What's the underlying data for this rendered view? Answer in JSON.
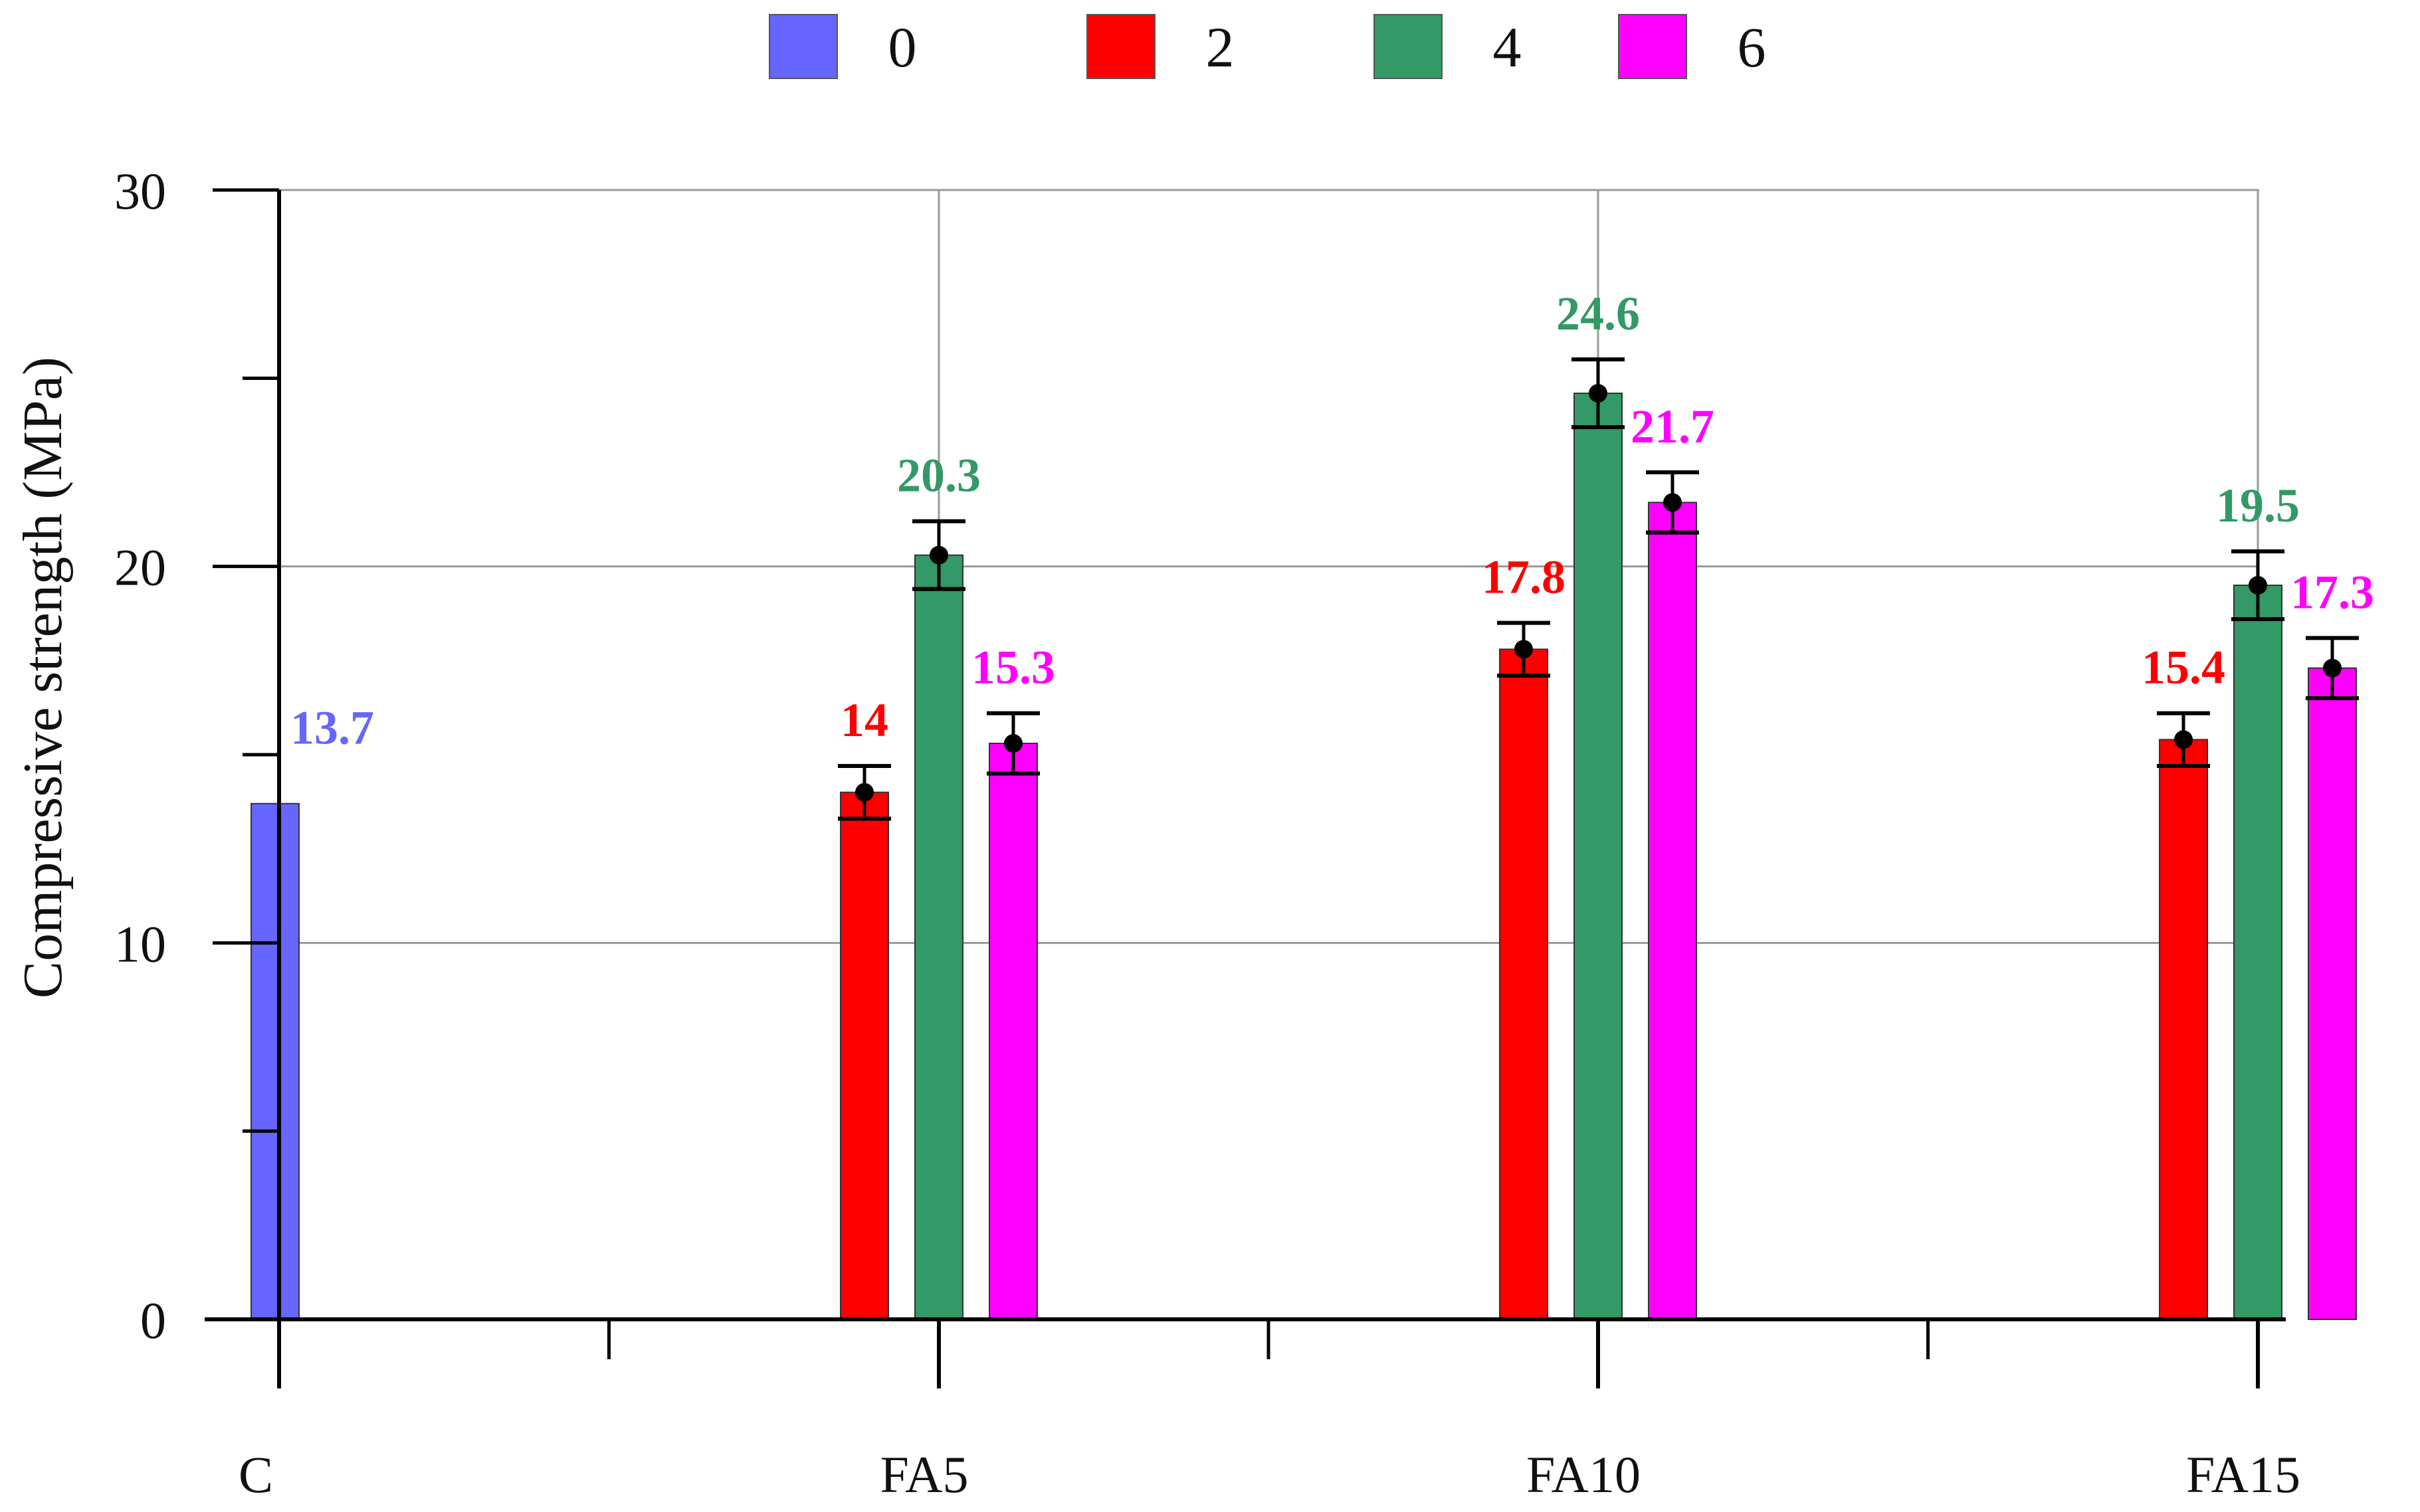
{
  "chart_data": {
    "type": "bar",
    "title": "",
    "xlabel": "",
    "ylabel": "Compressive strength (MPa)",
    "ylim": [
      0,
      30
    ],
    "yticks": [
      0,
      10,
      20,
      30
    ],
    "grid": true,
    "legend_position": "top",
    "categories": [
      "C",
      "FA5",
      "FA10",
      "FA15"
    ],
    "series": [
      {
        "name": "0",
        "color": "#6666ff",
        "values": [
          13.7,
          null,
          null,
          null
        ],
        "errors": [
          null,
          null,
          null,
          null
        ]
      },
      {
        "name": "2",
        "color": "#ff0000",
        "values": [
          null,
          14,
          17.8,
          15.4
        ],
        "errors": [
          null,
          0.7,
          0.7,
          0.7
        ]
      },
      {
        "name": "4",
        "color": "#339966",
        "values": [
          null,
          20.3,
          24.6,
          19.5
        ],
        "errors": [
          null,
          0.9,
          0.9,
          0.9
        ]
      },
      {
        "name": "6",
        "color": "#ff00ff",
        "values": [
          null,
          15.3,
          21.7,
          17.3
        ],
        "errors": [
          null,
          0.8,
          0.8,
          0.8
        ]
      }
    ]
  }
}
